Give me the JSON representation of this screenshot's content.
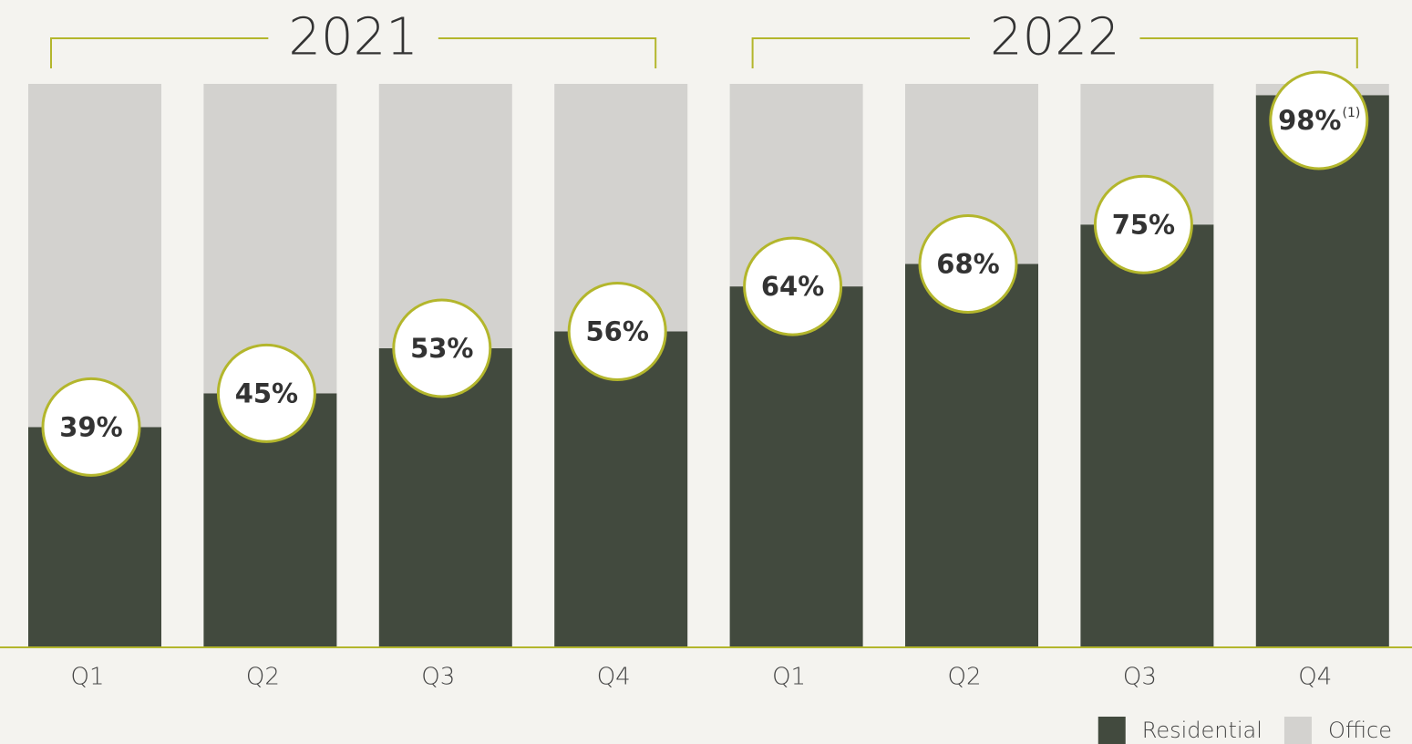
{
  "chart_data": {
    "type": "stacked_bar",
    "groups": [
      {
        "label": "2021",
        "categories": [
          "Q1",
          "Q2",
          "Q3",
          "Q4"
        ]
      },
      {
        "label": "2022",
        "categories": [
          "Q1",
          "Q2",
          "Q3",
          "Q4"
        ]
      }
    ],
    "series": [
      {
        "name": "Residential",
        "color": "#424a3e",
        "values": [
          39,
          45,
          53,
          56,
          64,
          68,
          75,
          98
        ],
        "value_labels": [
          "39%",
          "45%",
          "53%",
          "56%",
          "64%",
          "68%",
          "75%",
          "98%"
        ]
      },
      {
        "name": "Office",
        "color": "#d3d2cf",
        "values": [
          61,
          55,
          47,
          44,
          36,
          32,
          25,
          2
        ]
      }
    ],
    "annotation": "(1)",
    "ylim": [
      0,
      100
    ],
    "accent_color": "#b3b62c",
    "legend": "bottom-right"
  }
}
